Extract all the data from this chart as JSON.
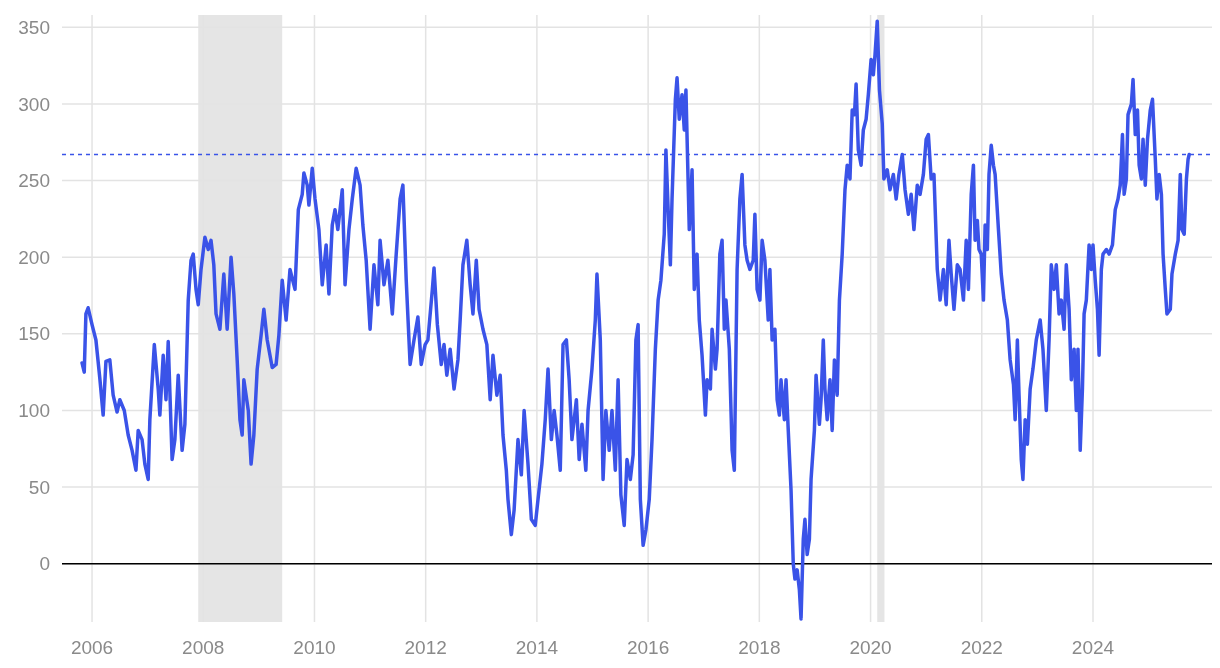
{
  "chart_data": {
    "type": "line",
    "x": [
      2005.82,
      2005.86,
      2005.89,
      2005.93,
      2006.0,
      2006.07,
      2006.14,
      2006.2,
      2006.25,
      2006.32,
      2006.38,
      2006.45,
      2006.5,
      2006.58,
      2006.65,
      2006.72,
      2006.79,
      2006.83,
      2006.9,
      2006.95,
      2007.01,
      2007.04,
      2007.12,
      2007.19,
      2007.22,
      2007.28,
      2007.33,
      2007.37,
      2007.44,
      2007.49,
      2007.55,
      2007.62,
      2007.67,
      2007.73,
      2007.78,
      2007.82,
      2007.87,
      2007.91,
      2007.96,
      2008.03,
      2008.09,
      2008.14,
      2008.19,
      2008.23,
      2008.3,
      2008.37,
      2008.43,
      2008.5,
      2008.55,
      2008.61,
      2008.66,
      2008.7,
      2008.73,
      2008.81,
      2008.86,
      2008.91,
      2008.97,
      2009.04,
      2009.09,
      2009.15,
      2009.24,
      2009.31,
      2009.36,
      2009.42,
      2009.49,
      2009.56,
      2009.65,
      2009.71,
      2009.78,
      2009.81,
      2009.87,
      2009.9,
      2009.96,
      2010.01,
      2010.08,
      2010.14,
      2010.21,
      2010.26,
      2010.32,
      2010.37,
      2010.42,
      2010.5,
      2010.55,
      2010.62,
      2010.68,
      2010.75,
      2010.82,
      2010.87,
      2010.93,
      2011.0,
      2011.07,
      2011.14,
      2011.18,
      2011.25,
      2011.32,
      2011.4,
      2011.47,
      2011.54,
      2011.59,
      2011.65,
      2011.72,
      2011.79,
      2011.86,
      2011.92,
      2011.99,
      2012.04,
      2012.12,
      2012.15,
      2012.21,
      2012.28,
      2012.33,
      2012.38,
      2012.44,
      2012.51,
      2012.58,
      2012.62,
      2012.67,
      2012.74,
      2012.8,
      2012.85,
      2012.91,
      2012.96,
      2013.03,
      2013.1,
      2013.16,
      2013.21,
      2013.28,
      2013.34,
      2013.39,
      2013.45,
      2013.48,
      2013.54,
      2013.59,
      2013.66,
      2013.72,
      2013.77,
      2013.84,
      2013.9,
      2013.97,
      2014.02,
      2014.09,
      2014.15,
      2014.2,
      2014.26,
      2014.31,
      2014.36,
      2014.42,
      2014.47,
      2014.53,
      2014.58,
      2014.63,
      2014.71,
      2014.76,
      2014.81,
      2014.88,
      2014.92,
      2014.99,
      2015.05,
      2015.08,
      2015.14,
      2015.19,
      2015.24,
      2015.3,
      2015.35,
      2015.41,
      2015.46,
      2015.51,
      2015.57,
      2015.62,
      2015.68,
      2015.73,
      2015.78,
      2015.82,
      2015.86,
      2015.91,
      2015.96,
      2016.02,
      2016.07,
      2016.13,
      2016.18,
      2016.23,
      2016.29,
      2016.32,
      2016.36,
      2016.4,
      2016.43,
      2016.49,
      2016.52,
      2016.56,
      2016.61,
      2016.65,
      2016.68,
      2016.74,
      2016.79,
      2016.83,
      2016.88,
      2016.92,
      2016.97,
      2017.03,
      2017.06,
      2017.12,
      2017.15,
      2017.21,
      2017.24,
      2017.29,
      2017.33,
      2017.37,
      2017.4,
      2017.46,
      2017.51,
      2017.55,
      2017.6,
      2017.65,
      2017.69,
      2017.74,
      2017.78,
      2017.83,
      2017.89,
      2017.92,
      2017.96,
      2018.01,
      2018.05,
      2018.1,
      2018.16,
      2018.19,
      2018.23,
      2018.28,
      2018.32,
      2018.36,
      2018.39,
      2018.45,
      2018.48,
      2018.52,
      2018.57,
      2018.61,
      2018.64,
      2018.68,
      2018.72,
      2018.75,
      2018.79,
      2018.82,
      2018.86,
      2018.9,
      2018.93,
      2018.99,
      2019.02,
      2019.08,
      2019.11,
      2019.15,
      2019.18,
      2019.22,
      2019.27,
      2019.31,
      2019.35,
      2019.4,
      2019.44,
      2019.49,
      2019.54,
      2019.58,
      2019.63,
      2019.67,
      2019.71,
      2019.74,
      2019.78,
      2019.83,
      2019.87,
      2019.92,
      2019.96,
      2020.01,
      2020.05,
      2020.08,
      2020.12,
      2020.16,
      2020.21,
      2020.24,
      2020.3,
      2020.35,
      2020.41,
      2020.46,
      2020.51,
      2020.57,
      2020.62,
      2020.68,
      2020.73,
      2020.78,
      2020.84,
      2020.89,
      2020.95,
      2021.0,
      2021.04,
      2021.09,
      2021.14,
      2021.2,
      2021.25,
      2021.31,
      2021.36,
      2021.41,
      2021.45,
      2021.5,
      2021.56,
      2021.61,
      2021.67,
      2021.72,
      2021.76,
      2021.81,
      2021.85,
      2021.88,
      2021.92,
      2021.95,
      2021.99,
      2022.03,
      2022.06,
      2022.1,
      2022.13,
      2022.17,
      2022.21,
      2022.24,
      2022.3,
      2022.35,
      2022.4,
      2022.46,
      2022.51,
      2022.57,
      2022.6,
      2022.64,
      2022.67,
      2022.71,
      2022.74,
      2022.78,
      2022.82,
      2022.87,
      2022.92,
      2022.98,
      2023.05,
      2023.1,
      2023.16,
      2023.21,
      2023.25,
      2023.3,
      2023.34,
      2023.39,
      2023.43,
      2023.48,
      2023.52,
      2023.57,
      2023.61,
      2023.66,
      2023.7,
      2023.73,
      2023.77,
      2023.81,
      2023.84,
      2023.88,
      2023.93,
      2023.97,
      2024.0,
      2024.04,
      2024.08,
      2024.11,
      2024.15,
      2024.18,
      2024.24,
      2024.29,
      2024.35,
      2024.4,
      2024.45,
      2024.49,
      2024.53,
      2024.56,
      2024.6,
      2024.63,
      2024.69,
      2024.72,
      2024.76,
      2024.8,
      2024.83,
      2024.87,
      2024.9,
      2024.94,
      2024.98,
      2025.03,
      2025.07,
      2025.12,
      2025.15,
      2025.19,
      2025.23,
      2025.26,
      2025.3,
      2025.33,
      2025.39,
      2025.42,
      2025.48,
      2025.53,
      2025.57,
      2025.6,
      2025.64,
      2025.68,
      2025.71,
      2025.73
    ],
    "series": [
      {
        "color": "#3a53e8",
        "values": [
          131,
          125,
          163,
          167,
          156,
          146,
          121,
          97,
          132,
          133,
          110,
          99,
          107,
          100,
          84,
          74,
          61,
          87,
          81,
          65,
          55,
          94,
          143,
          114,
          97,
          136,
          107,
          145,
          68,
          81,
          123,
          74,
          91,
          172,
          198,
          202,
          179,
          169,
          192,
          213,
          205,
          211,
          195,
          163,
          153,
          189,
          153,
          200,
          176,
          133,
          94,
          84,
          120,
          100,
          65,
          84,
          127,
          149,
          166,
          146,
          128,
          130,
          149,
          185,
          159,
          192,
          179,
          231,
          241,
          255,
          247,
          234,
          258,
          238,
          218,
          182,
          208,
          176,
          221,
          231,
          218,
          244,
          182,
          218,
          238,
          258,
          247,
          221,
          198,
          153,
          195,
          169,
          211,
          182,
          198,
          163,
          202,
          238,
          247,
          185,
          130,
          146,
          161,
          130,
          143,
          146,
          179,
          193,
          156,
          130,
          143,
          123,
          140,
          114,
          133,
          159,
          195,
          211,
          182,
          163,
          198,
          166,
          153,
          143,
          107,
          136,
          110,
          123,
          84,
          61,
          42,
          19,
          35,
          81,
          58,
          100,
          65,
          29,
          25,
          42,
          65,
          94,
          127,
          81,
          100,
          84,
          61,
          143,
          146,
          120,
          81,
          107,
          68,
          91,
          61,
          100,
          127,
          159,
          189,
          146,
          55,
          100,
          74,
          100,
          61,
          120,
          45,
          25,
          68,
          55,
          71,
          146,
          156,
          42,
          12,
          22,
          42,
          81,
          140,
          172,
          185,
          215,
          270,
          231,
          195,
          238,
          303,
          317,
          290,
          306,
          283,
          309,
          218,
          257,
          179,
          202,
          159,
          136,
          97,
          120,
          114,
          153,
          127,
          140,
          202,
          211,
          153,
          172,
          140,
          74,
          61,
          192,
          238,
          254,
          208,
          198,
          192,
          198,
          228,
          179,
          172,
          211,
          198,
          159,
          192,
          146,
          153,
          107,
          97,
          120,
          94,
          120,
          87,
          48,
          0,
          -10,
          -4,
          -17,
          -36,
          16,
          29,
          6,
          16,
          55,
          87,
          123,
          91,
          107,
          146,
          114,
          94,
          120,
          87,
          133,
          110,
          172,
          202,
          244,
          260,
          251,
          296,
          293,
          313,
          270,
          260,
          283,
          290,
          306,
          329,
          319,
          332,
          354,
          309,
          287,
          251,
          257,
          244,
          254,
          238,
          254,
          267,
          244,
          228,
          241,
          218,
          247,
          241,
          254,
          277,
          280,
          251,
          254,
          192,
          172,
          192,
          169,
          211,
          189,
          166,
          195,
          192,
          172,
          211,
          179,
          241,
          260,
          211,
          224,
          205,
          202,
          172,
          221,
          205,
          254,
          273,
          260,
          254,
          218,
          189,
          172,
          159,
          133,
          117,
          94,
          146,
          110,
          68,
          55,
          94,
          78,
          114,
          127,
          146,
          159,
          140,
          100,
          146,
          195,
          179,
          195,
          163,
          172,
          153,
          195,
          166,
          120,
          140,
          100,
          140,
          74,
          114,
          163,
          172,
          208,
          192,
          208,
          185,
          166,
          136,
          192,
          202,
          205,
          202,
          208,
          231,
          238,
          247,
          280,
          241,
          251,
          293,
          300,
          316,
          280,
          296,
          260,
          251,
          277,
          247,
          277,
          296,
          303,
          264,
          238,
          254,
          241,
          202,
          179,
          163,
          166,
          189,
          202,
          211,
          254,
          218,
          215,
          251,
          264,
          267
        ]
      }
    ],
    "xlim": [
      2005.46,
      2026.14
    ],
    "ylim": [
      -38,
      358
    ],
    "xticks": [
      2006,
      2008,
      2010,
      2012,
      2014,
      2016,
      2018,
      2020,
      2022,
      2024
    ],
    "yticks": [
      0,
      50,
      100,
      150,
      200,
      250,
      300,
      350
    ],
    "grid": true,
    "line_style": "solid",
    "marker": "none",
    "ref_lines": [
      {
        "axis": "y",
        "value": 267,
        "color": "#3a53e8",
        "line_style": "dashed"
      },
      {
        "axis": "y",
        "value": 0,
        "color": "#000000",
        "line_style": "solid"
      }
    ],
    "bands": [
      {
        "axis": "x",
        "from": 2007.91,
        "to": 2009.42,
        "color": "#e5e5e5"
      },
      {
        "axis": "x",
        "from": 2020.12,
        "to": 2020.25,
        "color": "#e5e5e5"
      }
    ]
  }
}
